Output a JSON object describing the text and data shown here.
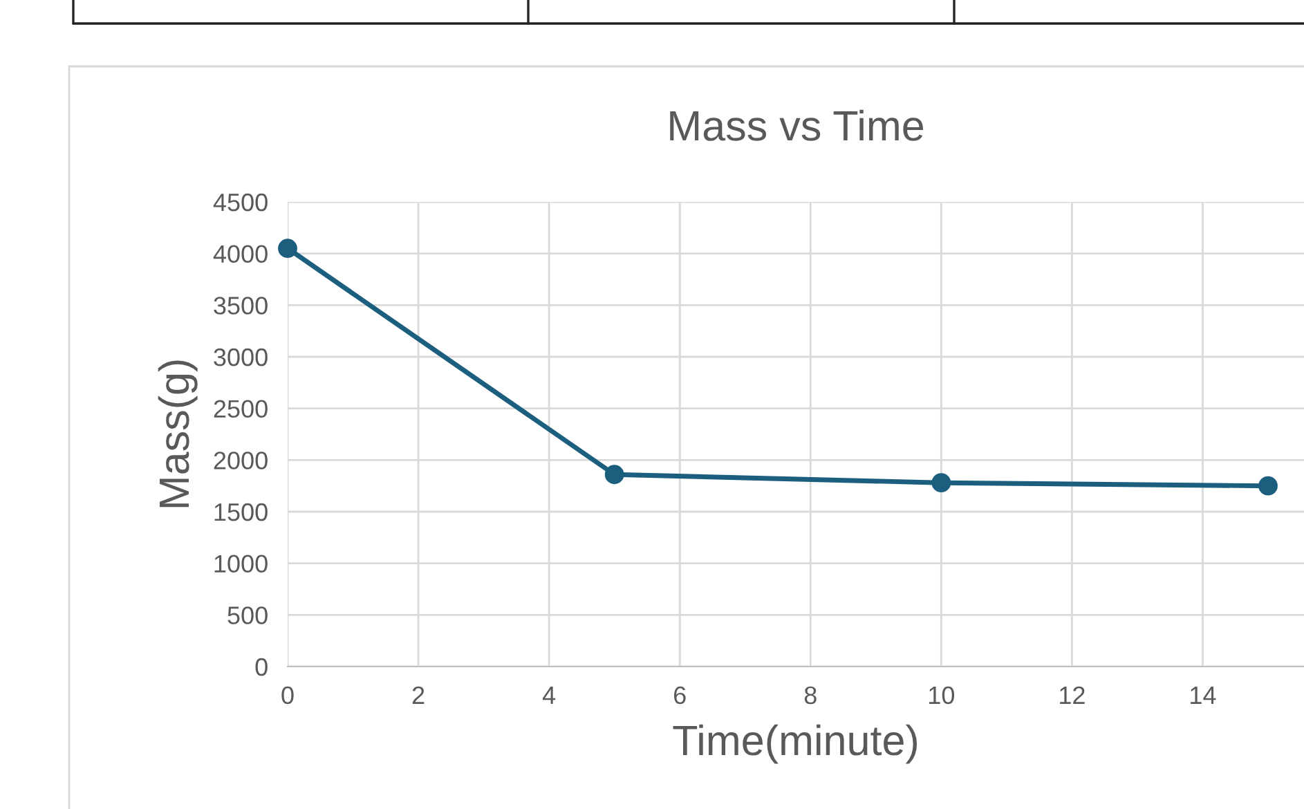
{
  "chart_data": {
    "type": "line",
    "title": "Mass vs Time",
    "xlabel": "Time(minute)",
    "ylabel": "Mass(g)",
    "x": [
      0,
      5,
      10,
      15
    ],
    "series": [
      {
        "color": "#1b5e7e",
        "values": [
          4050,
          1860,
          1780,
          1750
        ]
      }
    ],
    "xlim": [
      0,
      15.55
    ],
    "xticks": [
      0,
      2,
      4,
      6,
      8,
      10,
      12,
      14
    ],
    "ylim": [
      0,
      4500
    ],
    "yticks": [
      0,
      500,
      1000,
      1500,
      2000,
      2500,
      3000,
      3500,
      4000,
      4500
    ],
    "grid": true,
    "marker": "circle",
    "line_style": "solid"
  }
}
